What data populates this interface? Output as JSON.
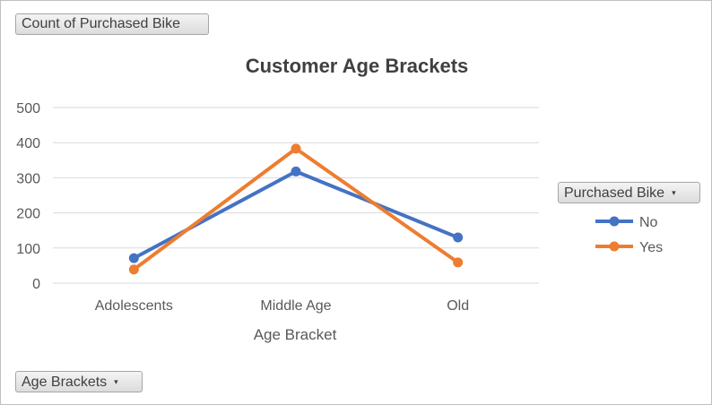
{
  "pivot": {
    "value_field": "Count of Purchased Bike",
    "legend_field": "Purchased Bike",
    "axis_field": "Age Brackets",
    "dropdown_glyph": "▾"
  },
  "chart_data": {
    "type": "line",
    "title": "Customer Age Brackets",
    "xlabel": "Age Bracket",
    "ylabel": "",
    "categories": [
      "Adolescents",
      "Middle Age",
      "Old"
    ],
    "ylim": [
      0,
      500
    ],
    "yticks": [
      0,
      100,
      200,
      300,
      400,
      500
    ],
    "grid": true,
    "legend_position": "right",
    "series": [
      {
        "name": "No",
        "values": [
          71,
          318,
          130
        ],
        "color": "#4472C4"
      },
      {
        "name": "Yes",
        "values": [
          39,
          383,
          59
        ],
        "color": "#ED7D31"
      }
    ]
  }
}
